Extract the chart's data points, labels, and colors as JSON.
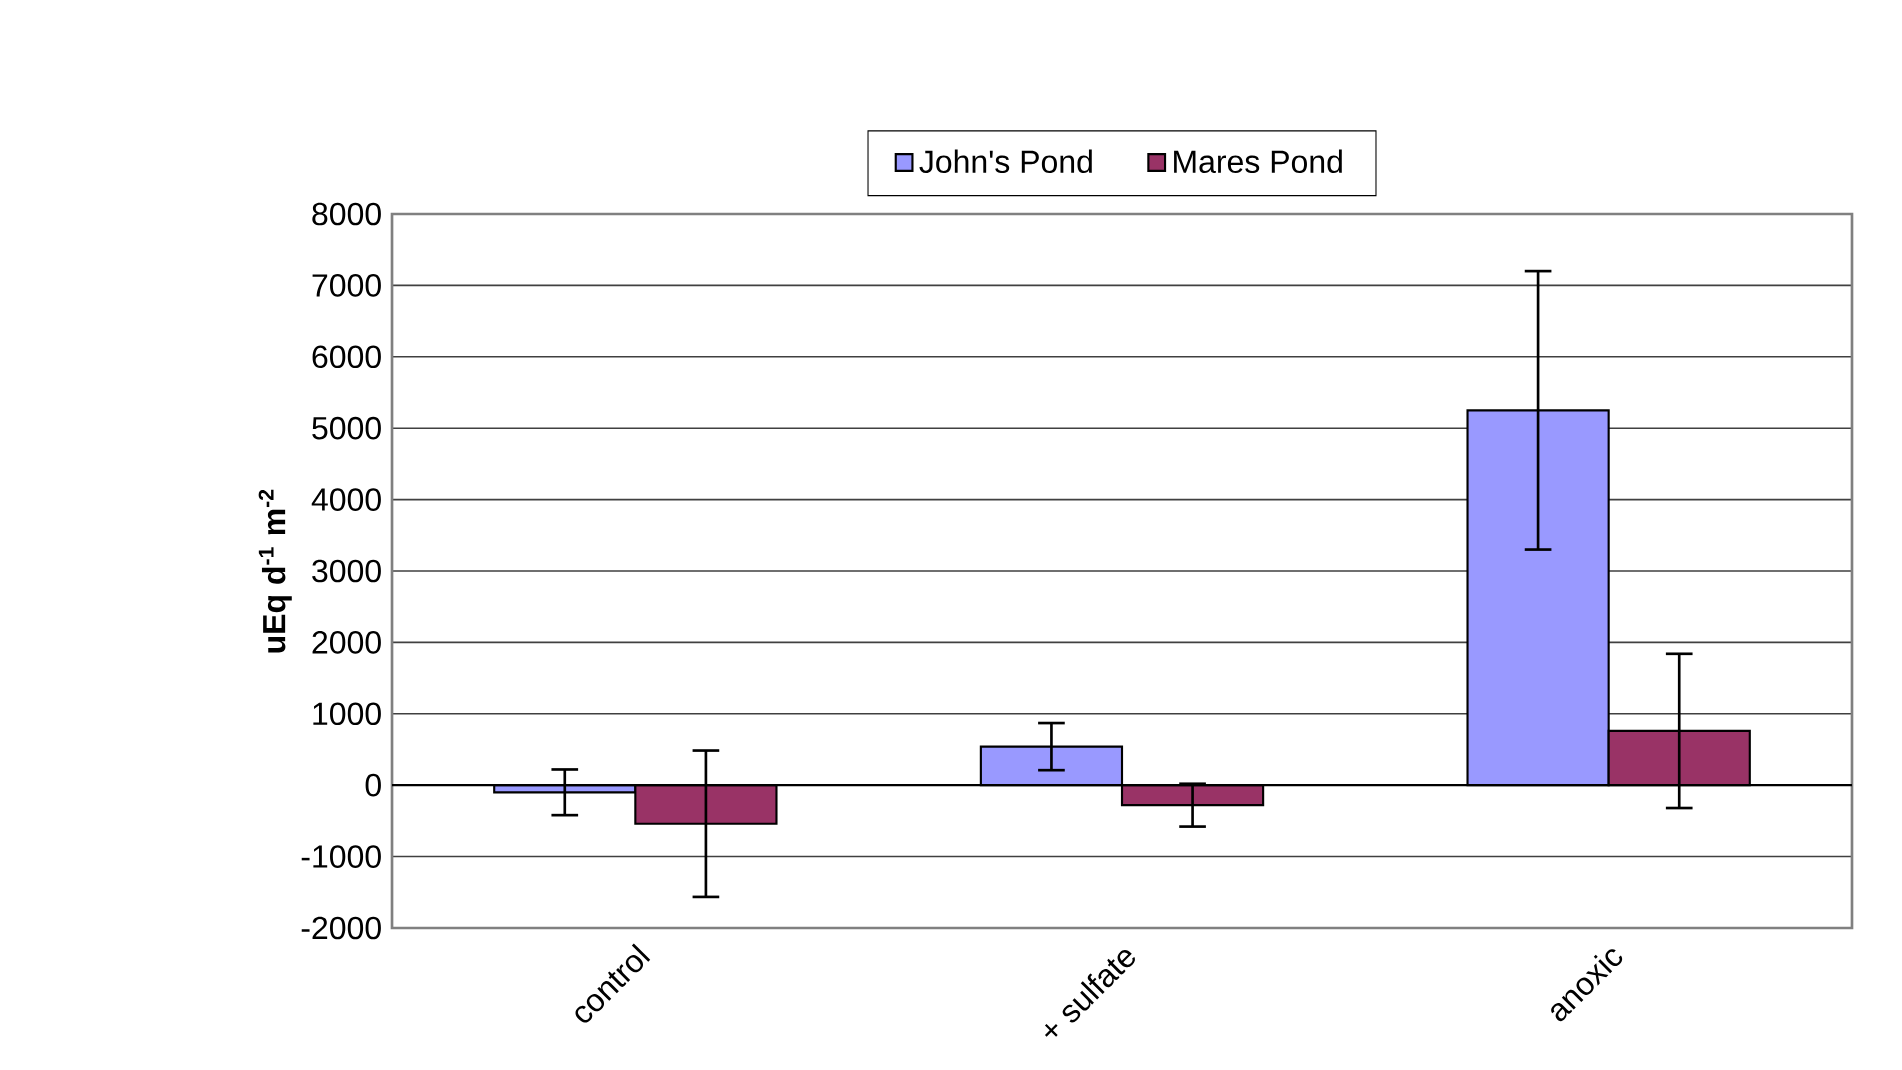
{
  "chart_data": {
    "type": "bar",
    "ylabel": "**uEq d$^{-1}$ m$^{-2}$**",
    "categories": [
      "control",
      "+ sulfate",
      "anoxic"
    ],
    "series": [
      {
        "name": "John's Pond",
        "color": "#9999ff",
        "values": [
          -100,
          540,
          5250
        ],
        "errors": [
          320,
          330,
          1950
        ]
      },
      {
        "name": "Mares Pond",
        "color": "#993366",
        "values": [
          -540,
          -280,
          760
        ],
        "errors": [
          1025,
          300,
          1080
        ]
      }
    ],
    "ylim": [
      -2000,
      8000
    ],
    "yticks": [
      -2000,
      -1000,
      0,
      1000,
      2000,
      3000,
      4000,
      5000,
      6000,
      7000,
      8000
    ],
    "grid": "y",
    "legend": "top"
  }
}
